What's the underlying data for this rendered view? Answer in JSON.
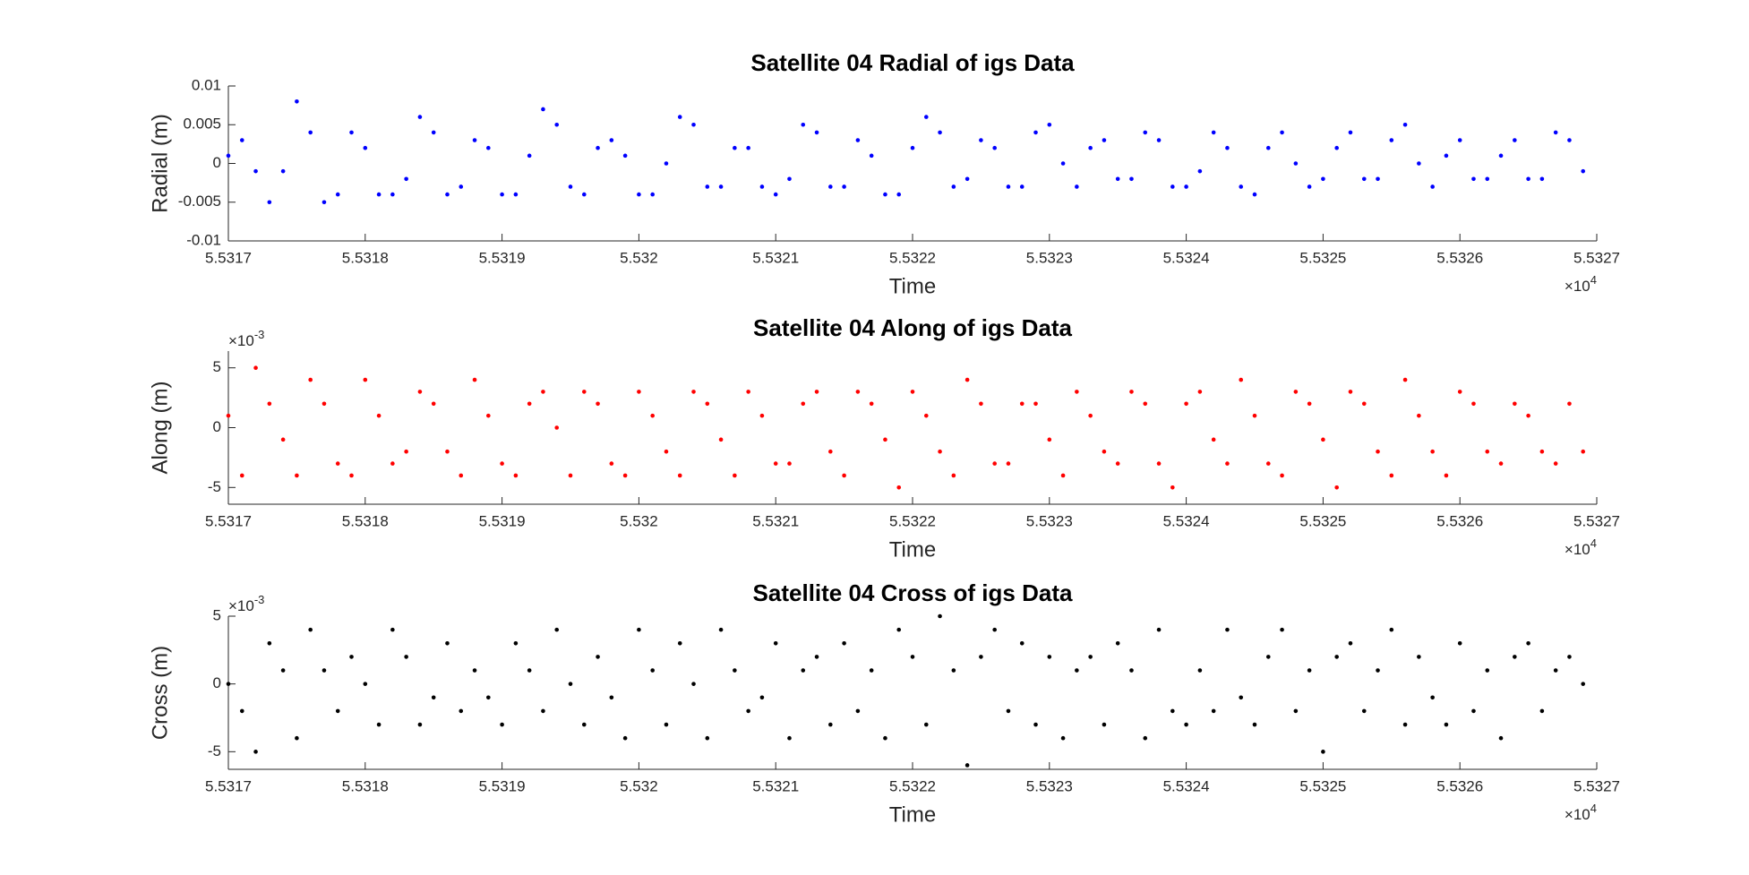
{
  "chart_data": [
    {
      "type": "scatter",
      "title": "Satellite 04 Radial of igs Data",
      "xlabel": "Time",
      "ylabel": "Radial (m)",
      "color": "#0000ff",
      "x": [
        55317,
        55317.1,
        55317.2,
        55317.3,
        55317.4,
        55317.5,
        55317.6,
        55317.7,
        55317.8,
        55317.9,
        55318,
        55318.1,
        55318.2,
        55318.3,
        55318.4,
        55318.5,
        55318.6,
        55318.7,
        55318.8,
        55318.9,
        55319,
        55319.1,
        55319.2,
        55319.3,
        55319.4,
        55319.5,
        55319.6,
        55319.7,
        55319.8,
        55319.9,
        55320,
        55320.1,
        55320.2,
        55320.3,
        55320.4,
        55320.5,
        55320.6,
        55320.7,
        55320.8,
        55320.9,
        55321,
        55321.1,
        55321.2,
        55321.3,
        55321.4,
        55321.5,
        55321.6,
        55321.7,
        55321.8,
        55321.9,
        55322,
        55322.1,
        55322.2,
        55322.3,
        55322.4,
        55322.5,
        55322.6,
        55322.7,
        55322.8,
        55322.9,
        55323,
        55323.1,
        55323.2,
        55323.3,
        55323.4,
        55323.5,
        55323.6,
        55323.7,
        55323.8,
        55323.9,
        55324,
        55324.1,
        55324.2,
        55324.3,
        55324.4,
        55324.5,
        55324.6,
        55324.7,
        55324.8,
        55324.9,
        55325,
        55325.1,
        55325.2,
        55325.3,
        55325.4,
        55325.5,
        55325.6,
        55325.7,
        55325.8,
        55325.9,
        55326,
        55326.1,
        55326.2,
        55326.3,
        55326.4,
        55326.5,
        55326.6,
        55326.7,
        55326.8,
        55326.9
      ],
      "values": [
        0.001,
        0.003,
        -0.001,
        -0.005,
        -0.001,
        0.008,
        0.004,
        -0.005,
        -0.004,
        0.004,
        0.002,
        -0.004,
        -0.004,
        -0.002,
        0.006,
        0.004,
        -0.004,
        -0.003,
        0.003,
        0.002,
        -0.004,
        -0.004,
        0.001,
        0.007,
        0.005,
        -0.003,
        -0.004,
        0.002,
        0.003,
        0.001,
        -0.004,
        -0.004,
        0.0,
        0.006,
        0.005,
        -0.003,
        -0.003,
        0.002,
        0.002,
        -0.003,
        -0.004,
        -0.002,
        0.005,
        0.004,
        -0.003,
        -0.003,
        0.003,
        0.001,
        -0.004,
        -0.004,
        0.002,
        0.006,
        0.004,
        -0.003,
        -0.002,
        0.003,
        0.002,
        -0.003,
        -0.003,
        0.004,
        0.005,
        0.0,
        -0.003,
        0.002,
        0.003,
        -0.002,
        -0.002,
        0.004,
        0.003,
        -0.003,
        -0.003,
        -0.001,
        0.004,
        0.002,
        -0.003,
        -0.004,
        0.002,
        0.004,
        0.0,
        -0.003,
        -0.002,
        0.002,
        0.004,
        -0.002,
        -0.002,
        0.003,
        0.005,
        0.0,
        -0.003,
        0.001,
        0.003,
        -0.002,
        -0.002,
        0.001,
        0.003,
        -0.002,
        -0.002,
        0.004,
        0.003,
        -0.001
      ],
      "xlim": [
        55317,
        55327
      ],
      "xticks": [
        {
          "value": 55317,
          "label": "5.5317"
        },
        {
          "value": 55318,
          "label": "5.5318"
        },
        {
          "value": 55319,
          "label": "5.5319"
        },
        {
          "value": 55320,
          "label": "5.532"
        },
        {
          "value": 55321,
          "label": "5.5321"
        },
        {
          "value": 55322,
          "label": "5.5322"
        },
        {
          "value": 55323,
          "label": "5.5323"
        },
        {
          "value": 55324,
          "label": "5.5324"
        },
        {
          "value": 55325,
          "label": "5.5325"
        },
        {
          "value": 55326,
          "label": "5.5326"
        },
        {
          "value": 55327,
          "label": "5.5327"
        }
      ],
      "x_exponent": {
        "base": "×10",
        "power": "4"
      },
      "ylim": [
        -0.01,
        0.01
      ],
      "yticks": [
        -0.01,
        -0.005,
        0,
        0.005,
        0.01
      ]
    },
    {
      "type": "scatter",
      "title": "Satellite 04 Along of igs Data",
      "xlabel": "Time",
      "ylabel": "Along (m)",
      "color": "#ff0000",
      "x": [
        55317,
        55317.1,
        55317.2,
        55317.3,
        55317.4,
        55317.5,
        55317.6,
        55317.7,
        55317.8,
        55317.9,
        55318,
        55318.1,
        55318.2,
        55318.3,
        55318.4,
        55318.5,
        55318.6,
        55318.7,
        55318.8,
        55318.9,
        55319,
        55319.1,
        55319.2,
        55319.3,
        55319.4,
        55319.5,
        55319.6,
        55319.7,
        55319.8,
        55319.9,
        55320,
        55320.1,
        55320.2,
        55320.3,
        55320.4,
        55320.5,
        55320.6,
        55320.7,
        55320.8,
        55320.9,
        55321,
        55321.1,
        55321.2,
        55321.3,
        55321.4,
        55321.5,
        55321.6,
        55321.7,
        55321.8,
        55321.9,
        55322,
        55322.1,
        55322.2,
        55322.3,
        55322.4,
        55322.5,
        55322.6,
        55322.7,
        55322.8,
        55322.9,
        55323,
        55323.1,
        55323.2,
        55323.3,
        55323.4,
        55323.5,
        55323.6,
        55323.7,
        55323.8,
        55323.9,
        55324,
        55324.1,
        55324.2,
        55324.3,
        55324.4,
        55324.5,
        55324.6,
        55324.7,
        55324.8,
        55324.9,
        55325,
        55325.1,
        55325.2,
        55325.3,
        55325.4,
        55325.5,
        55325.6,
        55325.7,
        55325.8,
        55325.9,
        55326,
        55326.1,
        55326.2,
        55326.3,
        55326.4,
        55326.5,
        55326.6,
        55326.7,
        55326.8,
        55326.9
      ],
      "values": [
        0.001,
        -0.004,
        0.005,
        0.002,
        -0.001,
        -0.004,
        0.004,
        0.002,
        -0.003,
        -0.004,
        0.004,
        0.001,
        -0.003,
        -0.002,
        0.003,
        0.002,
        -0.002,
        -0.004,
        0.004,
        0.001,
        -0.003,
        -0.004,
        0.002,
        0.003,
        0.0,
        -0.004,
        0.003,
        0.002,
        -0.003,
        -0.004,
        0.003,
        0.001,
        -0.002,
        -0.004,
        0.003,
        0.002,
        -0.001,
        -0.004,
        0.003,
        0.001,
        -0.003,
        -0.003,
        0.002,
        0.003,
        -0.002,
        -0.004,
        0.003,
        0.002,
        -0.001,
        -0.005,
        0.003,
        0.001,
        -0.002,
        -0.004,
        0.004,
        0.002,
        -0.003,
        -0.003,
        0.002,
        0.002,
        -0.001,
        -0.004,
        0.003,
        0.001,
        -0.002,
        -0.003,
        0.003,
        0.002,
        -0.003,
        -0.005,
        0.002,
        0.003,
        -0.001,
        -0.003,
        0.004,
        0.001,
        -0.003,
        -0.004,
        0.003,
        0.002,
        -0.001,
        -0.005,
        0.003,
        0.002,
        -0.002,
        -0.004,
        0.004,
        0.001,
        -0.002,
        -0.004,
        0.003,
        0.002,
        -0.002,
        -0.003,
        0.002,
        0.001,
        -0.002,
        -0.003,
        0.002,
        -0.002
      ],
      "xlim": [
        55317,
        55327
      ],
      "xticks": [
        {
          "value": 55317,
          "label": "5.5317"
        },
        {
          "value": 55318,
          "label": "5.5318"
        },
        {
          "value": 55319,
          "label": "5.5319"
        },
        {
          "value": 55320,
          "label": "5.532"
        },
        {
          "value": 55321,
          "label": "5.5321"
        },
        {
          "value": 55322,
          "label": "5.5322"
        },
        {
          "value": 55323,
          "label": "5.5323"
        },
        {
          "value": 55324,
          "label": "5.5324"
        },
        {
          "value": 55325,
          "label": "5.5325"
        },
        {
          "value": 55326,
          "label": "5.5326"
        },
        {
          "value": 55327,
          "label": "5.5327"
        }
      ],
      "x_exponent": {
        "base": "×10",
        "power": "4"
      },
      "ylim": [
        -0.0064,
        0.0064
      ],
      "yticks": [
        {
          "value": -0.005,
          "label": "-5"
        },
        0,
        {
          "value": 0.005,
          "label": "5"
        }
      ],
      "y_exponent": {
        "base": "×10",
        "power": "-3"
      }
    },
    {
      "type": "scatter",
      "title": "Satellite 04 Cross of igs Data",
      "xlabel": "Time",
      "ylabel": "Cross (m)",
      "color": "#000000",
      "x": [
        55317,
        55317.1,
        55317.2,
        55317.3,
        55317.4,
        55317.5,
        55317.6,
        55317.7,
        55317.8,
        55317.9,
        55318,
        55318.1,
        55318.2,
        55318.3,
        55318.4,
        55318.5,
        55318.6,
        55318.7,
        55318.8,
        55318.9,
        55319,
        55319.1,
        55319.2,
        55319.3,
        55319.4,
        55319.5,
        55319.6,
        55319.7,
        55319.8,
        55319.9,
        55320,
        55320.1,
        55320.2,
        55320.3,
        55320.4,
        55320.5,
        55320.6,
        55320.7,
        55320.8,
        55320.9,
        55321,
        55321.1,
        55321.2,
        55321.3,
        55321.4,
        55321.5,
        55321.6,
        55321.7,
        55321.8,
        55321.9,
        55322,
        55322.1,
        55322.2,
        55322.3,
        55322.4,
        55322.5,
        55322.6,
        55322.7,
        55322.8,
        55322.9,
        55323,
        55323.1,
        55323.2,
        55323.3,
        55323.4,
        55323.5,
        55323.6,
        55323.7,
        55323.8,
        55323.9,
        55324,
        55324.1,
        55324.2,
        55324.3,
        55324.4,
        55324.5,
        55324.6,
        55324.7,
        55324.8,
        55324.9,
        55325,
        55325.1,
        55325.2,
        55325.3,
        55325.4,
        55325.5,
        55325.6,
        55325.7,
        55325.8,
        55325.9,
        55326,
        55326.1,
        55326.2,
        55326.3,
        55326.4,
        55326.5,
        55326.6,
        55326.7,
        55326.8,
        55326.9
      ],
      "values": [
        0.0,
        -0.002,
        -0.005,
        0.003,
        0.001,
        -0.004,
        0.004,
        0.001,
        -0.002,
        0.002,
        0.0,
        -0.003,
        0.004,
        0.002,
        -0.003,
        -0.001,
        0.003,
        -0.002,
        0.001,
        -0.001,
        -0.003,
        0.003,
        0.001,
        -0.002,
        0.004,
        0.0,
        -0.003,
        0.002,
        -0.001,
        -0.004,
        0.004,
        0.001,
        -0.003,
        0.003,
        0.0,
        -0.004,
        0.004,
        0.001,
        -0.002,
        -0.001,
        0.003,
        -0.004,
        0.001,
        0.002,
        -0.003,
        0.003,
        -0.002,
        0.001,
        -0.004,
        0.004,
        0.002,
        -0.003,
        0.005,
        0.001,
        -0.006,
        0.002,
        0.004,
        -0.002,
        0.003,
        -0.003,
        0.002,
        -0.004,
        0.001,
        0.002,
        -0.003,
        0.003,
        0.001,
        -0.004,
        0.004,
        -0.002,
        -0.003,
        0.001,
        -0.002,
        0.004,
        -0.001,
        -0.003,
        0.002,
        0.004,
        -0.002,
        0.001,
        -0.005,
        0.002,
        0.003,
        -0.002,
        0.001,
        0.004,
        -0.003,
        0.002,
        -0.001,
        -0.003,
        0.003,
        -0.002,
        0.001,
        -0.004,
        0.002,
        0.003,
        -0.002,
        0.001,
        0.002,
        0.0
      ],
      "xlim": [
        55317,
        55327
      ],
      "xticks": [
        {
          "value": 55317,
          "label": "5.5317"
        },
        {
          "value": 55318,
          "label": "5.5318"
        },
        {
          "value": 55319,
          "label": "5.5319"
        },
        {
          "value": 55320,
          "label": "5.532"
        },
        {
          "value": 55321,
          "label": "5.5321"
        },
        {
          "value": 55322,
          "label": "5.5322"
        },
        {
          "value": 55323,
          "label": "5.5323"
        },
        {
          "value": 55324,
          "label": "5.5324"
        },
        {
          "value": 55325,
          "label": "5.5325"
        },
        {
          "value": 55326,
          "label": "5.5326"
        },
        {
          "value": 55327,
          "label": "5.5327"
        }
      ],
      "x_exponent": {
        "base": "×10",
        "power": "4"
      },
      "ylim": [
        -0.0063,
        0.005
      ],
      "yticks": [
        {
          "value": -0.005,
          "label": "-5"
        },
        0,
        {
          "value": 0.005,
          "label": "5"
        }
      ],
      "y_exponent": {
        "base": "×10",
        "power": "-3"
      }
    }
  ]
}
